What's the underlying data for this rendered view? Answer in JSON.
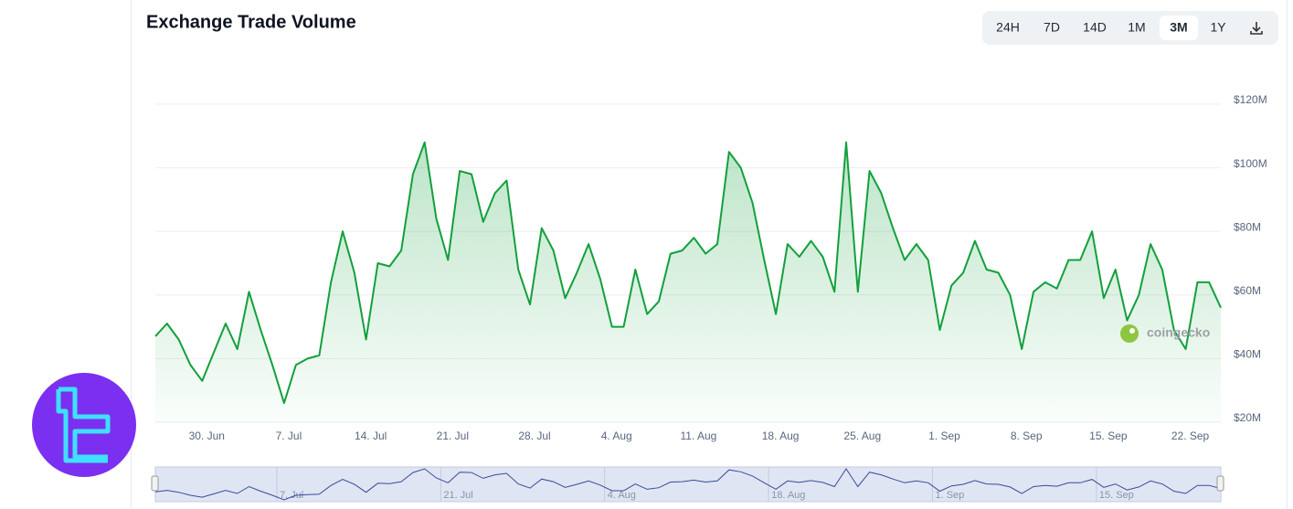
{
  "chart_data": {
    "type": "line",
    "title": "Exchange Trade Volume",
    "ranges": [
      "24H",
      "7D",
      "14D",
      "1M",
      "3M",
      "1Y"
    ],
    "active_range": "3M",
    "watermark": "coingecko",
    "color": "#12a03c",
    "categories": [
      null,
      null,
      null,
      null,
      "30. Jun",
      null,
      null,
      null,
      null,
      null,
      null,
      "7. Jul",
      null,
      null,
      null,
      null,
      null,
      null,
      "14. Jul",
      null,
      null,
      null,
      null,
      null,
      null,
      "21. Jul",
      null,
      null,
      null,
      null,
      null,
      null,
      "28. Jul",
      null,
      null,
      null,
      null,
      null,
      null,
      "4. Aug",
      null,
      null,
      null,
      null,
      null,
      null,
      "11. Aug",
      null,
      null,
      null,
      null,
      null,
      null,
      "18. Aug",
      null,
      null,
      null,
      null,
      null,
      null,
      "25. Aug",
      null,
      null,
      null,
      null,
      null,
      null,
      "1. Sep",
      null,
      null,
      null,
      null,
      null,
      null,
      "8. Sep",
      null,
      null,
      null,
      null,
      null,
      null,
      "15. Sep",
      null,
      null,
      null,
      null,
      null,
      null,
      "22. Sep",
      null,
      null,
      null
    ],
    "values": [
      47,
      51,
      46,
      38,
      33,
      42,
      51,
      43,
      61,
      49,
      38,
      26,
      38,
      40,
      41,
      64,
      80,
      67,
      46,
      70,
      69,
      74,
      98,
      108,
      84,
      71,
      99,
      98,
      83,
      92,
      96,
      68,
      57,
      81,
      74,
      59,
      67,
      76,
      65,
      50,
      50,
      68,
      54,
      58,
      73,
      74,
      78,
      73,
      76,
      105,
      100,
      89,
      71,
      54,
      76,
      72,
      77,
      72,
      61,
      108,
      61,
      99,
      92,
      81,
      71,
      76,
      71,
      49,
      63,
      67,
      77,
      68,
      67,
      60,
      43,
      61,
      64,
      62,
      71,
      71,
      80,
      59,
      68,
      52,
      60,
      76,
      68,
      49,
      43,
      64,
      64,
      56
    ],
    "ylim": [
      20,
      120
    ],
    "yticks": [
      {
        "value": 20,
        "label": "$20M"
      },
      {
        "value": 40,
        "label": "$40M"
      },
      {
        "value": 60,
        "label": "$60M"
      },
      {
        "value": 80,
        "label": "$80M"
      },
      {
        "value": 100,
        "label": "$100M"
      },
      {
        "value": 120,
        "label": "$120M"
      }
    ],
    "grid": true
  }
}
